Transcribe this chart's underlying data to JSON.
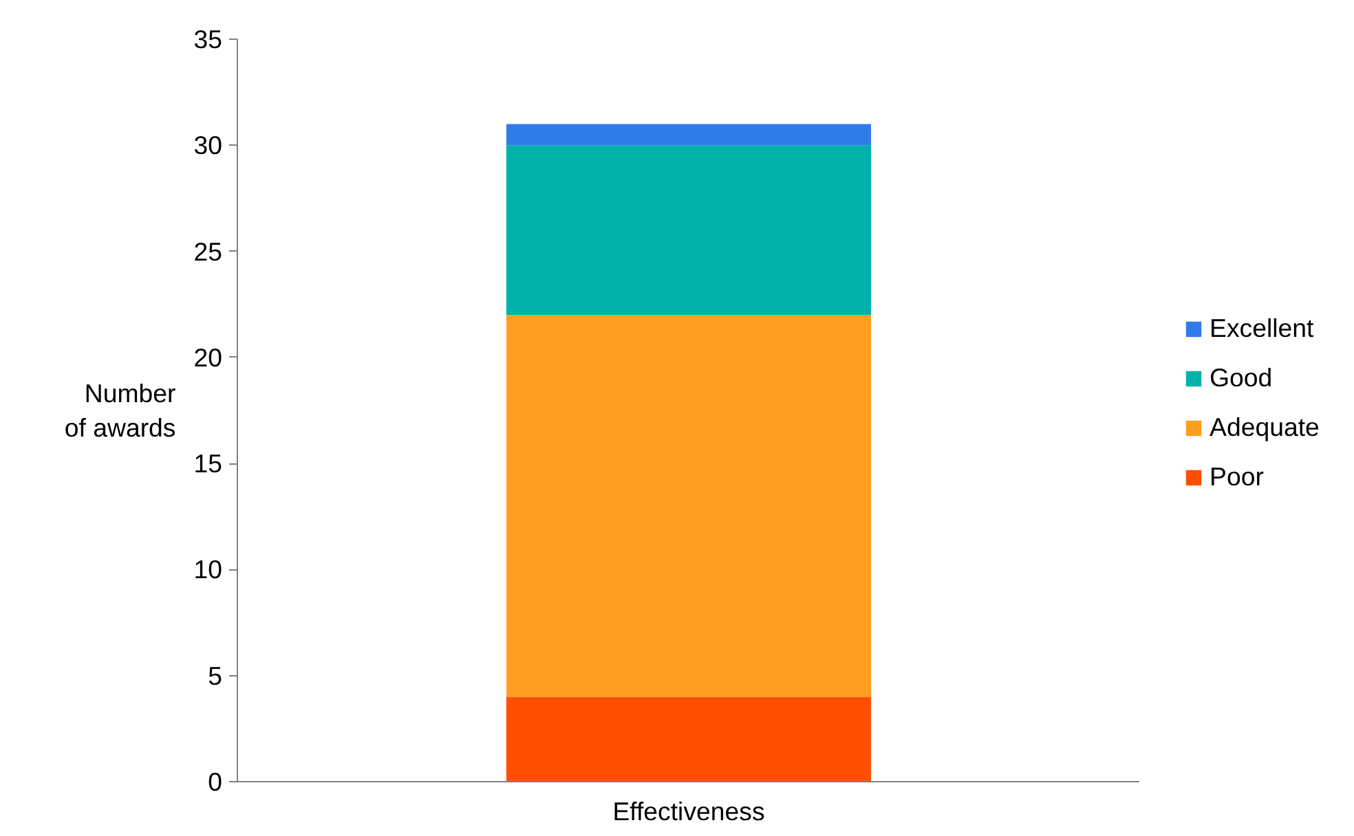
{
  "chart_data": {
    "type": "bar",
    "stacked": true,
    "categories": [
      "Effectiveness"
    ],
    "ylabel": "Number of awards",
    "ylim": [
      0,
      35
    ],
    "yticks": [
      0,
      5,
      10,
      15,
      20,
      25,
      30,
      35
    ],
    "grid": false,
    "legend": "right",
    "series": [
      {
        "name": "Poor",
        "color": "#ff5000",
        "values": [
          4
        ]
      },
      {
        "name": "Adequate",
        "color": "#ff9e1f",
        "values": [
          18
        ]
      },
      {
        "name": "Good",
        "color": "#00b2a9",
        "values": [
          8
        ]
      },
      {
        "name": "Excellent",
        "color": "#2f7ce9",
        "values": [
          1
        ]
      }
    ]
  }
}
